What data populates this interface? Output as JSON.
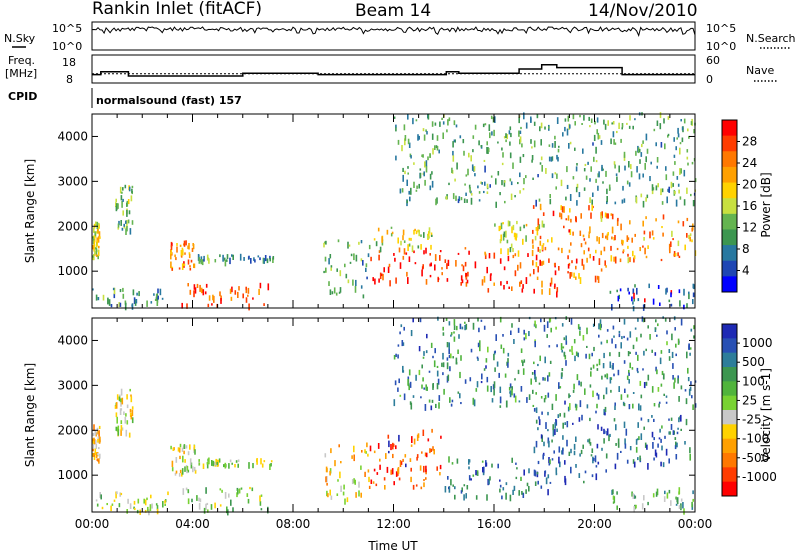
{
  "header": {
    "title": "Rankin Inlet (fitACF)",
    "beam": "Beam 14",
    "date": "14/Nov/2010"
  },
  "noise_panel": {
    "left_label": "N.Sky",
    "right_label": "N.Search",
    "left_ticks": [
      "10^5",
      "10^0"
    ],
    "right_ticks": [
      "10^5",
      "10^0"
    ]
  },
  "freq_panel": {
    "left_label_1": "Freq.",
    "left_label_2": "[MHz]",
    "right_label": "Nave",
    "left_ticks": [
      "18",
      "8"
    ],
    "right_ticks": [
      "60",
      "0"
    ],
    "freq_steps": [
      {
        "t": 0.0,
        "f": 11.0
      },
      {
        "t": 0.35,
        "f": 12.0
      },
      {
        "t": 1.45,
        "f": 10.5
      },
      {
        "t": 6.0,
        "f": 11.5
      },
      {
        "t": 9.0,
        "f": 11.0
      },
      {
        "t": 14.1,
        "f": 12.0
      },
      {
        "t": 14.6,
        "f": 11.5
      },
      {
        "t": 17.0,
        "f": 13.0
      },
      {
        "t": 17.9,
        "f": 14.5
      },
      {
        "t": 18.5,
        "f": 13.5
      },
      {
        "t": 21.1,
        "f": 11.0
      },
      {
        "t": 24.0,
        "f": 11.0
      }
    ],
    "nave_level": 20
  },
  "cpid": {
    "label": "CPID",
    "program": "normalsound (fast) 157"
  },
  "chart_data": [
    {
      "type": "heatmap",
      "title": "",
      "xlabel": "",
      "ylabel": "Slant Range [km]",
      "xlim": [
        0,
        24
      ],
      "ylim": [
        180,
        4500
      ],
      "yticks": [
        "1000",
        "2000",
        "3000",
        "4000"
      ],
      "colorbar": {
        "label": "Power [dB]",
        "ticks": [
          "28",
          "24",
          "20",
          "16",
          "12",
          "8",
          "4"
        ],
        "colors": [
          "#ff0000",
          "#ff3c00",
          "#ff7800",
          "#ffa000",
          "#ffd200",
          "#c8e040",
          "#64b450",
          "#3c9650",
          "#2878a0",
          "#1e46b4",
          "#0000ff"
        ]
      },
      "regions": [
        {
          "t0": 0.0,
          "t1": 0.3,
          "r0": 1300,
          "r1": 2100,
          "level": 0.55
        },
        {
          "t0": 0.9,
          "t1": 1.6,
          "r0": 1900,
          "r1": 2900,
          "level": 0.4
        },
        {
          "t0": 0.0,
          "t1": 3.0,
          "r0": 180,
          "r1": 600,
          "level": 0.3
        },
        {
          "t0": 3.1,
          "t1": 4.1,
          "r0": 1000,
          "r1": 1700,
          "level": 0.75
        },
        {
          "t0": 3.5,
          "t1": 7.0,
          "r0": 180,
          "r1": 700,
          "level": 0.85
        },
        {
          "t0": 4.2,
          "t1": 7.2,
          "r0": 1200,
          "r1": 1350,
          "level": 0.3
        },
        {
          "t0": 9.2,
          "t1": 11.0,
          "r0": 400,
          "r1": 1700,
          "level": 0.35
        },
        {
          "t0": 11.0,
          "t1": 15.5,
          "r0": 700,
          "r1": 1500,
          "level": 0.9
        },
        {
          "t0": 11.0,
          "t1": 13.5,
          "r0": 1500,
          "r1": 2000,
          "level": 0.5
        },
        {
          "t0": 15.5,
          "t1": 18.5,
          "r0": 500,
          "r1": 1400,
          "level": 0.85
        },
        {
          "t0": 16.0,
          "t1": 18.0,
          "r0": 1400,
          "r1": 2100,
          "level": 0.5
        },
        {
          "t0": 17.5,
          "t1": 20.5,
          "r0": 800,
          "r1": 2500,
          "level": 0.75
        },
        {
          "t0": 20.0,
          "t1": 24.0,
          "r0": 1200,
          "r1": 2300,
          "level": 0.7
        },
        {
          "t0": 20.5,
          "t1": 24.0,
          "r0": 180,
          "r1": 700,
          "level": 0.15
        },
        {
          "t0": 12.0,
          "t1": 24.0,
          "r0": 2500,
          "r1": 4500,
          "level": 0.35
        }
      ]
    },
    {
      "type": "heatmap",
      "title": "",
      "xlabel": "Time UT",
      "ylabel": "Slant Range [km]",
      "xlim": [
        0,
        24
      ],
      "ylim": [
        180,
        4500
      ],
      "xticks": [
        "00:00",
        "04:00",
        "08:00",
        "12:00",
        "16:00",
        "20:00",
        "00:00"
      ],
      "yticks": [
        "1000",
        "2000",
        "3000",
        "4000"
      ],
      "colorbar": {
        "label": "Velocity [m s-1]",
        "ticks": [
          "1000",
          "500",
          "100",
          "25",
          "-25",
          "-100",
          "-500",
          "-1000"
        ],
        "colors": [
          "#1e2ab4",
          "#2850b4",
          "#2d7d9a",
          "#3c9650",
          "#50b43c",
          "#78d232",
          "#c8c8c8",
          "#ffd200",
          "#ffa000",
          "#ff7800",
          "#ff3c00",
          "#ff0000"
        ]
      },
      "regions": [
        {
          "t0": 0.0,
          "t1": 0.3,
          "r0": 1300,
          "r1": 2100,
          "level": 0.35
        },
        {
          "t0": 0.9,
          "t1": 1.6,
          "r0": 1900,
          "r1": 2900,
          "level": 0.45
        },
        {
          "t0": 0.0,
          "t1": 3.0,
          "r0": 180,
          "r1": 600,
          "level": 0.5
        },
        {
          "t0": 3.1,
          "t1": 4.1,
          "r0": 1000,
          "r1": 1700,
          "level": 0.45
        },
        {
          "t0": 3.5,
          "t1": 7.0,
          "r0": 180,
          "r1": 700,
          "level": 0.55
        },
        {
          "t0": 4.2,
          "t1": 7.2,
          "r0": 1200,
          "r1": 1350,
          "level": 0.5
        },
        {
          "t0": 9.2,
          "t1": 11.0,
          "r0": 400,
          "r1": 1700,
          "level": 0.35
        },
        {
          "t0": 11.0,
          "t1": 14.0,
          "r0": 700,
          "r1": 2000,
          "level": 0.15
        },
        {
          "t0": 14.0,
          "t1": 18.5,
          "r0": 500,
          "r1": 1400,
          "level": 0.8
        },
        {
          "t0": 17.5,
          "t1": 20.5,
          "r0": 800,
          "r1": 2500,
          "level": 0.85
        },
        {
          "t0": 20.0,
          "t1": 24.0,
          "r0": 1200,
          "r1": 2300,
          "level": 0.8
        },
        {
          "t0": 20.5,
          "t1": 24.0,
          "r0": 180,
          "r1": 700,
          "level": 0.6
        },
        {
          "t0": 12.0,
          "t1": 24.0,
          "r0": 2500,
          "r1": 4500,
          "level": 0.75
        }
      ]
    }
  ]
}
